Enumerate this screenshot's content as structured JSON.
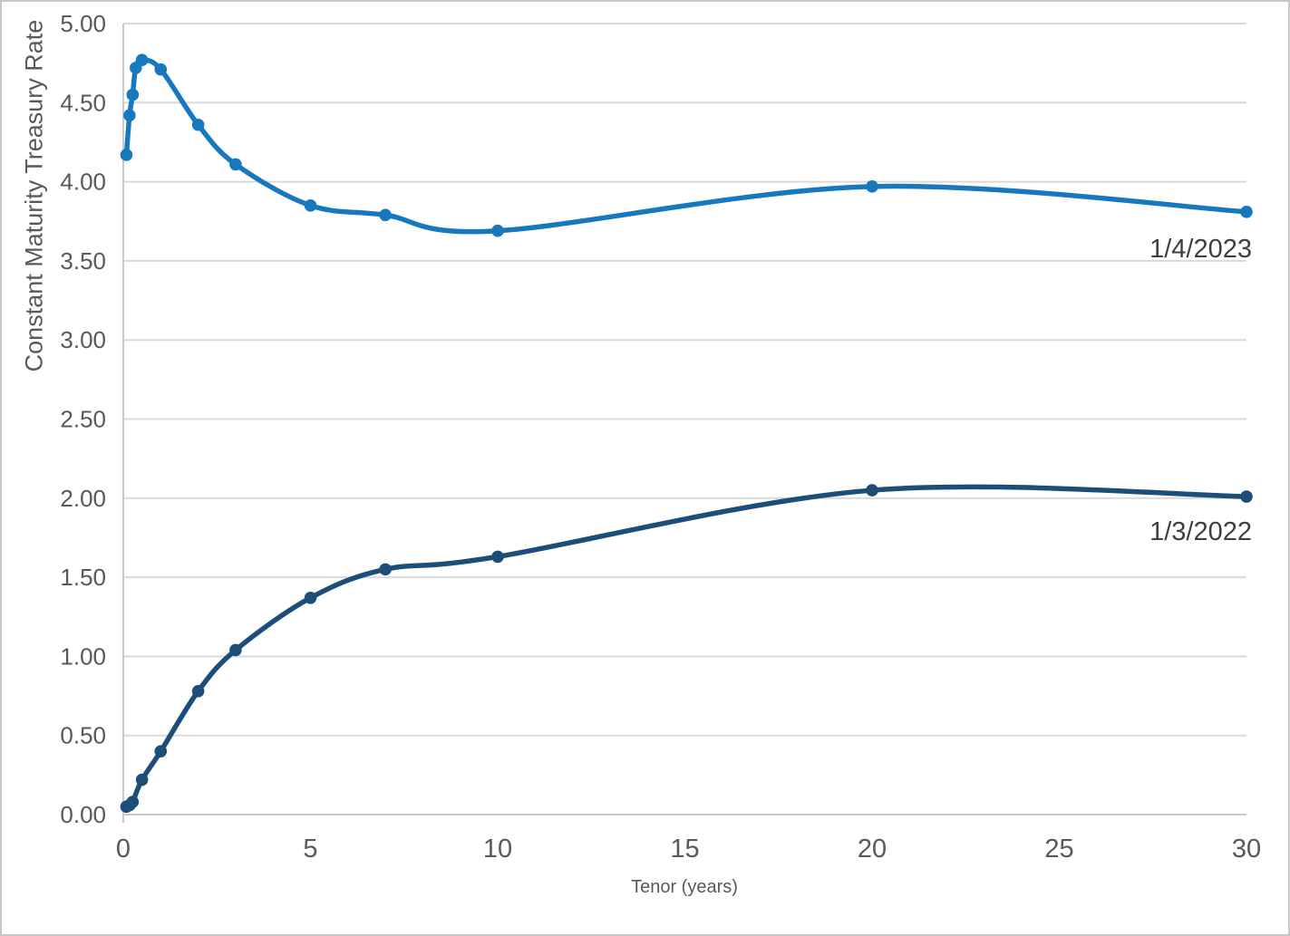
{
  "chart_data": {
    "type": "line",
    "title": "",
    "xlabel": "Tenor (years)",
    "ylabel": "Constant Maturity Treasury Rate",
    "xlim": [
      0,
      30
    ],
    "ylim": [
      0,
      5
    ],
    "x_ticks": [
      {
        "value": 0,
        "label": "0"
      },
      {
        "value": 5,
        "label": "5"
      },
      {
        "value": 10,
        "label": "10"
      },
      {
        "value": 15,
        "label": "15"
      },
      {
        "value": 20,
        "label": "20"
      },
      {
        "value": 25,
        "label": "25"
      },
      {
        "value": 30,
        "label": "30"
      }
    ],
    "y_ticks": [
      {
        "value": 0.0,
        "label": "0.00"
      },
      {
        "value": 0.5,
        "label": "0.50"
      },
      {
        "value": 1.0,
        "label": "1.00"
      },
      {
        "value": 1.5,
        "label": "1.50"
      },
      {
        "value": 2.0,
        "label": "2.00"
      },
      {
        "value": 2.5,
        "label": "2.50"
      },
      {
        "value": 3.0,
        "label": "3.00"
      },
      {
        "value": 3.5,
        "label": "3.50"
      },
      {
        "value": 4.0,
        "label": "4.00"
      },
      {
        "value": 4.5,
        "label": "4.50"
      },
      {
        "value": 5.0,
        "label": "5.00"
      }
    ],
    "grid": "horizontal",
    "gridline_color": "#d9d9d9",
    "axis_line_color": "#c9c9c9",
    "legend_position": "labels-at-line-end-right",
    "line_style": "smoothed-with-markers",
    "series": [
      {
        "name": "1/4/2023",
        "color": "#1878be",
        "x": [
          0.0833,
          0.1667,
          0.25,
          0.3333,
          0.5,
          1,
          2,
          3,
          5,
          7,
          10,
          20,
          30
        ],
        "values": [
          4.17,
          4.42,
          4.55,
          4.72,
          4.77,
          4.71,
          4.36,
          4.11,
          3.85,
          3.79,
          3.69,
          3.97,
          3.81
        ]
      },
      {
        "name": "1/3/2022",
        "color": "#1c4e79",
        "x": [
          0.0833,
          0.1667,
          0.25,
          0.5,
          1,
          2,
          3,
          5,
          7,
          10,
          20,
          30
        ],
        "values": [
          0.05,
          0.06,
          0.08,
          0.22,
          0.4,
          0.78,
          1.04,
          1.37,
          1.55,
          1.63,
          2.05,
          2.01
        ]
      }
    ]
  }
}
